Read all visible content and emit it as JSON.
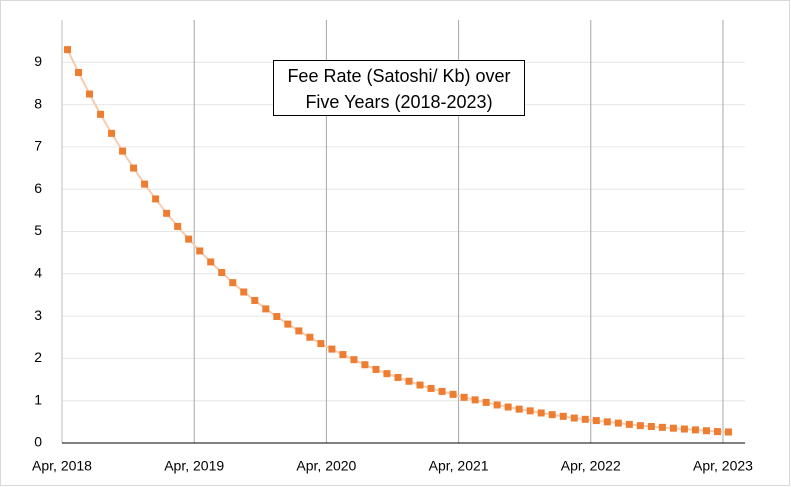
{
  "chart_data": {
    "type": "line",
    "title": "Fee Rate (Satoshi/ Kb) over Five Years (2018-2023)",
    "x": [
      "2018-04",
      "2018-05",
      "2018-06",
      "2018-07",
      "2018-08",
      "2018-09",
      "2018-10",
      "2018-11",
      "2018-12",
      "2019-01",
      "2019-02",
      "2019-03",
      "2019-04",
      "2019-05",
      "2019-06",
      "2019-07",
      "2019-08",
      "2019-09",
      "2019-10",
      "2019-11",
      "2019-12",
      "2020-01",
      "2020-02",
      "2020-03",
      "2020-04",
      "2020-05",
      "2020-06",
      "2020-07",
      "2020-08",
      "2020-09",
      "2020-10",
      "2020-11",
      "2020-12",
      "2021-01",
      "2021-02",
      "2021-03",
      "2021-04",
      "2021-05",
      "2021-06",
      "2021-07",
      "2021-08",
      "2021-09",
      "2021-10",
      "2021-11",
      "2021-12",
      "2022-01",
      "2022-02",
      "2022-03",
      "2022-04",
      "2022-05",
      "2022-06",
      "2022-07",
      "2022-08",
      "2022-09",
      "2022-10",
      "2022-11",
      "2022-12",
      "2023-01",
      "2023-02",
      "2023-03",
      "2023-04"
    ],
    "series": [
      {
        "name": "Fee Rate",
        "color": "#ed7d31",
        "line_color": "#f8cbad",
        "values": [
          9.3,
          8.76,
          8.25,
          7.77,
          7.32,
          6.9,
          6.5,
          6.12,
          5.77,
          5.43,
          5.12,
          4.82,
          4.54,
          4.28,
          4.03,
          3.79,
          3.57,
          3.37,
          3.17,
          2.99,
          2.81,
          2.65,
          2.5,
          2.35,
          2.22,
          2.09,
          1.97,
          1.85,
          1.74,
          1.64,
          1.55,
          1.46,
          1.37,
          1.29,
          1.22,
          1.15,
          1.08,
          1.02,
          0.96,
          0.9,
          0.85,
          0.8,
          0.76,
          0.71,
          0.67,
          0.63,
          0.59,
          0.56,
          0.53,
          0.5,
          0.47,
          0.44,
          0.41,
          0.39,
          0.37,
          0.35,
          0.33,
          0.31,
          0.29,
          0.27,
          0.26
        ]
      }
    ],
    "xlim": [
      "2018-04",
      "2023-06"
    ],
    "xticks": [
      {
        "value": "2018-04",
        "label": "Apr, 2018"
      },
      {
        "value": "2019-04",
        "label": "Apr, 2019"
      },
      {
        "value": "2020-04",
        "label": "Apr, 2020"
      },
      {
        "value": "2021-04",
        "label": "Apr, 2021"
      },
      {
        "value": "2022-04",
        "label": "Apr, 2022"
      },
      {
        "value": "2023-04",
        "label": "Apr, 2023"
      }
    ],
    "ylim": [
      0,
      10
    ],
    "yticks": [
      0,
      1,
      2,
      3,
      4,
      5,
      6,
      7,
      8,
      9
    ],
    "grid": true
  }
}
